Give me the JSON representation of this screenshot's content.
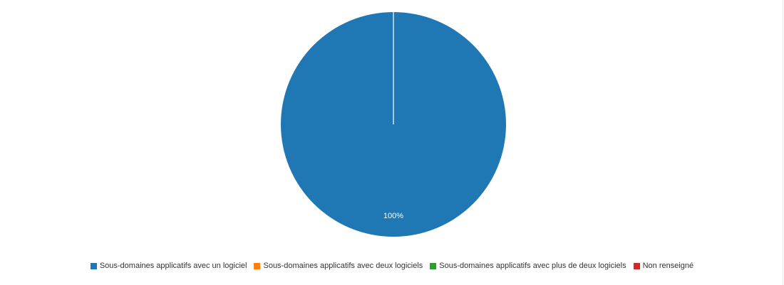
{
  "chart_data": {
    "type": "pie",
    "slices": [
      {
        "name": "Sous-domaines applicatifs avec un logiciel",
        "value": 100,
        "color": "#1f77b4",
        "label": "100%"
      },
      {
        "name": "Sous-domaines applicatifs avec deux logiciels",
        "value": 0,
        "color": "#ff7f0e",
        "label": ""
      },
      {
        "name": "Sous-domaines applicatifs avec plus de deux logiciels",
        "value": 0,
        "color": "#2ca02c",
        "label": ""
      },
      {
        "name": "Non renseigné",
        "value": 0,
        "color": "#d62728",
        "label": ""
      }
    ],
    "legend_position": "bottom"
  }
}
